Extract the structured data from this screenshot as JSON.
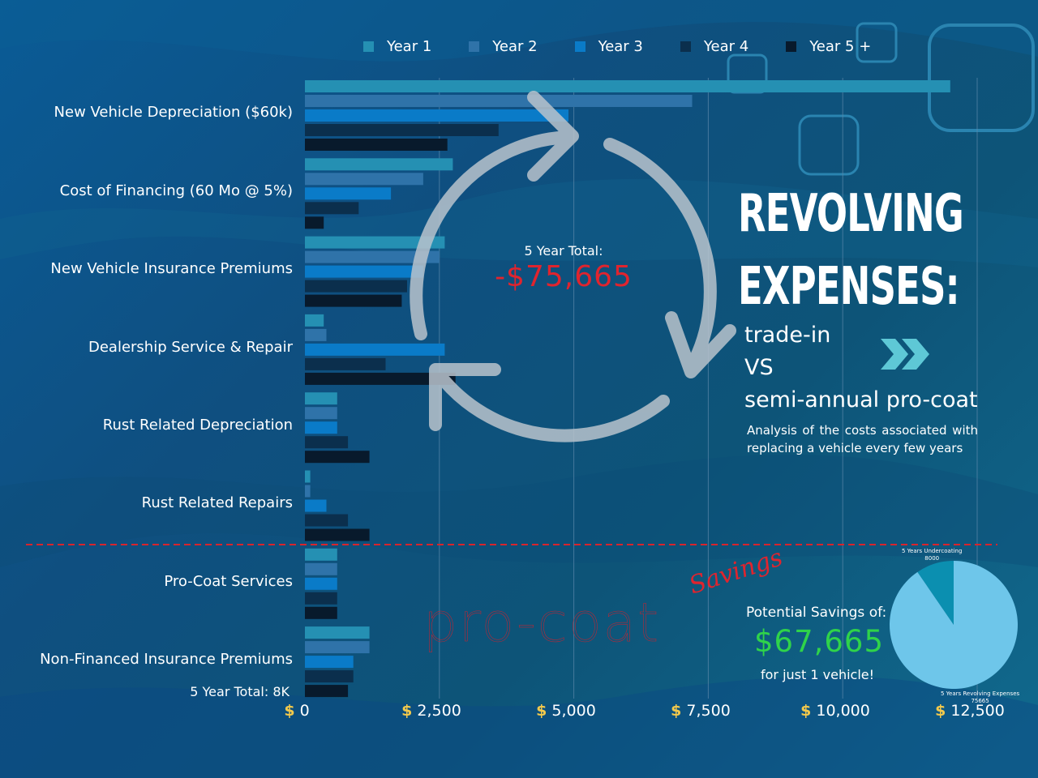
{
  "colors": {
    "year1": "#2590b3",
    "year2": "#2f73a9",
    "year3": "#0a7bc8",
    "year4": "#0b2f4d",
    "year5": "#081a2c",
    "negative": "#e0242e",
    "savings": "#2fd34a",
    "pie_main": "#6ec6ea",
    "pie_slice": "#0b8fb0",
    "divider": "#d9242c"
  },
  "chart_data": [
    {
      "type": "bar",
      "orientation": "horizontal",
      "categories": [
        "New Vehicle Depreciation ($60k)",
        "Cost of Financing (60 Mo @ 5%)",
        "New Vehicle Insurance Premiums",
        "Dealership Service & Repair",
        "Rust Related Depreciation",
        "Rust Related Repairs",
        "Pro-Coat Services",
        "Non-Financed Insurance Premiums"
      ],
      "series": [
        {
          "name": "Year 1",
          "values": [
            12000,
            2750,
            2600,
            350,
            600,
            100,
            600,
            1200
          ]
        },
        {
          "name": "Year 2",
          "values": [
            7200,
            2200,
            2500,
            400,
            600,
            100,
            600,
            1200
          ]
        },
        {
          "name": "Year 3",
          "values": [
            4900,
            1600,
            2200,
            2600,
            600,
            400,
            600,
            900
          ]
        },
        {
          "name": "Year 4",
          "values": [
            3600,
            1000,
            1900,
            1500,
            800,
            800,
            600,
            900
          ]
        },
        {
          "name": "Year 5 +",
          "values": [
            2650,
            350,
            1800,
            2800,
            1200,
            1200,
            600,
            800
          ]
        }
      ],
      "xlim": [
        0,
        12500
      ],
      "ticks": [
        {
          "prefix": "$",
          "label": "0"
        },
        {
          "prefix": "$",
          "label": "2,500"
        },
        {
          "prefix": "$",
          "label": "5,000"
        },
        {
          "prefix": "$",
          "label": "7,500"
        },
        {
          "prefix": "$",
          "label": "10,000"
        },
        {
          "prefix": "$",
          "label": "12,500"
        }
      ],
      "tick_values": [
        0,
        2500,
        5000,
        7500,
        10000,
        12500
      ],
      "grid": "vertical",
      "legend_position": "top"
    },
    {
      "type": "pie",
      "slices": [
        {
          "label": "5 Years Undercoating",
          "value": 8000
        },
        {
          "label": "5 Years Revolving Expenses",
          "value": 75665
        }
      ]
    }
  ],
  "legend": [
    "Year 1",
    "Year 2",
    "Year 3",
    "Year 4",
    "Year 5 +"
  ],
  "center_total": {
    "label": "5 Year Total:",
    "value": "-$75,665"
  },
  "procoat_total": "5 Year Total: 8K",
  "headline": {
    "line1": "REVOLVING",
    "line2": "EXPENSES:"
  },
  "subhead": {
    "line1": "trade-in",
    "line2": "VS",
    "line3": "semi-annual pro-coat"
  },
  "description": "Analysis of the costs associated with replacing a vehicle every few years",
  "savings": {
    "label": "Potential Savings of:",
    "value": "$67,665",
    "sub": "for just 1 vehicle!"
  },
  "pie_labels": {
    "slice_name": "5 Years Undercoating",
    "slice_value": "8000",
    "main_name": "5 Years Revolving Expenses",
    "main_value": "75665"
  },
  "brand": {
    "logo": "pro-coat",
    "script": "Savings"
  }
}
